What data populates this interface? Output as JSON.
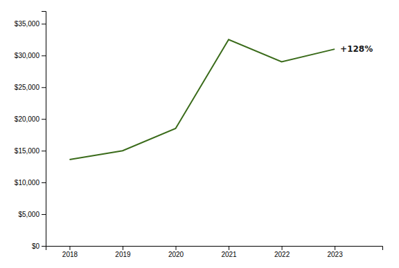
{
  "chart_data": {
    "type": "line",
    "x": [
      2018,
      2019,
      2020,
      2021,
      2022,
      2023
    ],
    "values": [
      13600,
      15000,
      18500,
      32500,
      29000,
      31000
    ],
    "color": "#3a6b1a",
    "annotation": "+128%",
    "xlim": [
      2017.55,
      2023.9
    ],
    "xticks": [
      2018,
      2019,
      2020,
      2021,
      2022,
      2023
    ],
    "ylim": [
      0,
      37000
    ],
    "yticks": [
      {
        "value": 0,
        "label": "$0"
      },
      {
        "value": 5000,
        "label": "$5,000"
      },
      {
        "value": 10000,
        "label": "$10,000"
      },
      {
        "value": 15000,
        "label": "$15,000"
      },
      {
        "value": 20000,
        "label": "$20,000"
      },
      {
        "value": 25000,
        "label": "$25,000"
      },
      {
        "value": 30000,
        "label": "$30,000"
      },
      {
        "value": 35000,
        "label": "$35,000"
      }
    ],
    "grid": false
  }
}
